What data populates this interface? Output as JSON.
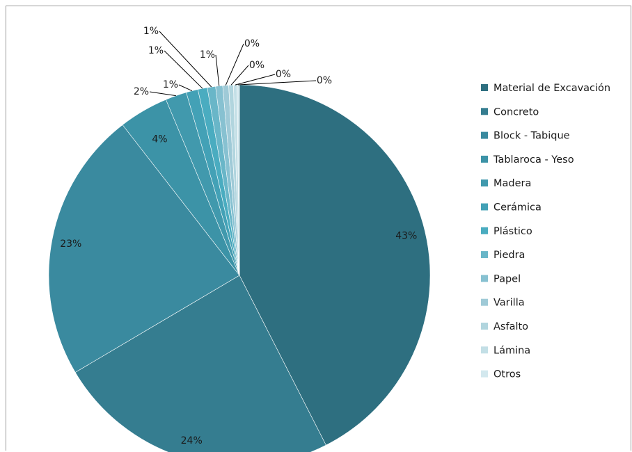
{
  "chart_data": {
    "type": "pie",
    "title": "",
    "legend_position": "right",
    "categories": [
      "Material de Excavación",
      "Concreto",
      "Block - Tabique",
      "Tablaroca - Yeso",
      "Madera",
      "Cerámica",
      "Plástico",
      "Piedra",
      "Papel",
      "Varilla",
      "Asfalto",
      "Lámina",
      "Otros"
    ],
    "values": [
      42.5,
      24.0,
      23.0,
      4.2,
      1.8,
      1.0,
      0.8,
      0.7,
      0.6,
      0.5,
      0.4,
      0.3,
      0.2
    ],
    "labels": [
      "43%",
      "24%",
      "23%",
      "4%",
      "2%",
      "1%",
      "1%",
      "1%",
      "1%",
      "0%",
      "0%",
      "0%",
      "0%"
    ],
    "colors": [
      "#2e6f80",
      "#357d90",
      "#3a8a9f",
      "#3c93a7",
      "#4199ad",
      "#43a1b6",
      "#4aacc0",
      "#69b6c8",
      "#87c1d1",
      "#9fcad7",
      "#b1d5de",
      "#c3dfe6",
      "#d3e8ee"
    ]
  }
}
